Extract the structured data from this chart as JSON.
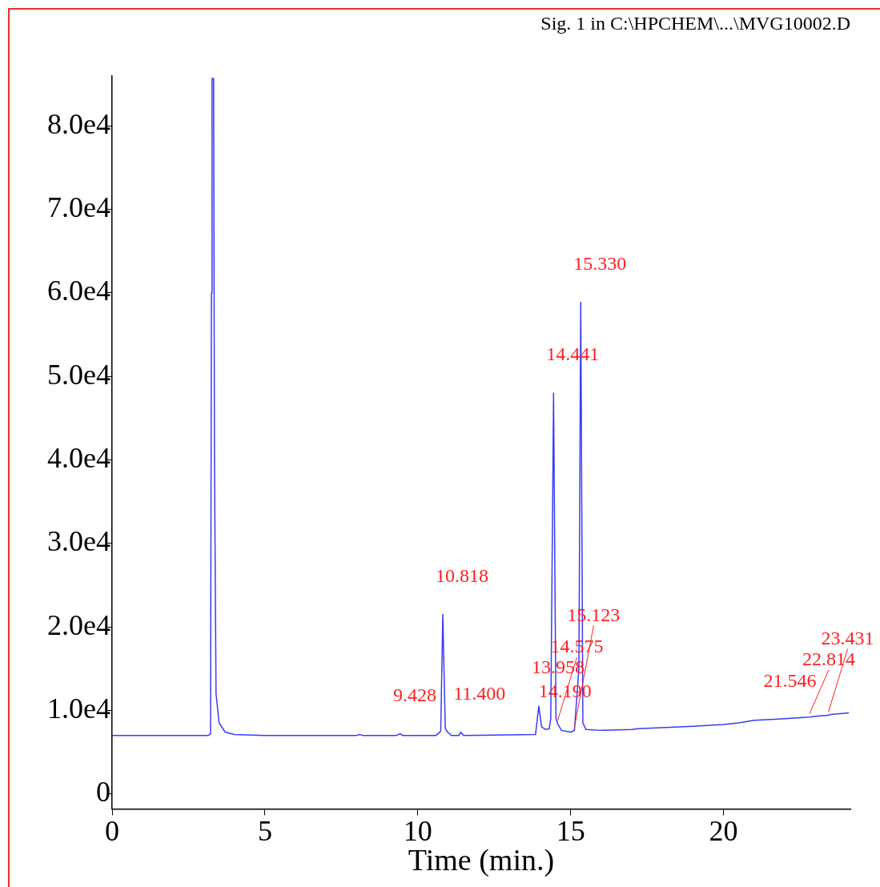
{
  "chart_data": {
    "type": "line",
    "title": "Sig. 1 in C:\\HPCHEM\\...\\MVG10002.D",
    "xlabel": "Time (min.)",
    "x": [
      0,
      3.15,
      3.22,
      3.25,
      3.27,
      3.32,
      3.35,
      3.4,
      3.5,
      3.7,
      4.0,
      5,
      8.0,
      8.1,
      8.2,
      9.3,
      9.428,
      9.5,
      10.6,
      10.75,
      10.818,
      10.9,
      11.0,
      11.1,
      11.35,
      11.4,
      11.5,
      13.85,
      13.958,
      14.05,
      14.19,
      14.3,
      14.35,
      14.441,
      14.52,
      14.575,
      14.7,
      15.0,
      15.123,
      15.27,
      15.33,
      15.4,
      15.5,
      16,
      17,
      17.2,
      17.8,
      19,
      20,
      20.5,
      21,
      21.546,
      22,
      22.814,
      23,
      23.431,
      23.5,
      24.1
    ],
    "series": [
      {
        "color": "#3a3af5",
        "values": [
          7000,
          7000,
          7200,
          60000,
          85700,
          85700,
          40000,
          12000,
          8500,
          7400,
          7100,
          7000,
          7000,
          7100,
          7000,
          7000,
          7200,
          7000,
          7000,
          7500,
          21500,
          7800,
          7300,
          7000,
          7000,
          7400,
          7000,
          7100,
          10500,
          8000,
          7700,
          7800,
          9000,
          48000,
          9000,
          8400,
          7600,
          7400,
          7600,
          15000,
          58900,
          8500,
          7700,
          7600,
          7700,
          7800,
          7900,
          8100,
          8300,
          8500,
          8800,
          8900,
          9000,
          9200,
          9300,
          9400,
          9500,
          9700
        ]
      }
    ],
    "xlim": [
      0,
      24.15
    ],
    "xticks": [
      0,
      5,
      10,
      15,
      20
    ],
    "ylim": [
      -1800,
      86000
    ],
    "yticks": [
      0,
      {
        "value": 10000,
        "label": "1.0e4"
      },
      {
        "value": 20000,
        "label": "2.0e4"
      },
      {
        "value": 30000,
        "label": "3.0e4"
      },
      {
        "value": 40000,
        "label": "4.0e4"
      },
      {
        "value": 50000,
        "label": "5.0e4"
      },
      {
        "value": 60000,
        "label": "6.0e4"
      },
      {
        "value": 70000,
        "label": "7.0e4"
      },
      {
        "value": 80000,
        "label": "8.0e4"
      }
    ],
    "grid": false,
    "legend": false,
    "marker": "none",
    "line_style": "solid",
    "annotations": [
      {
        "text": "9.428",
        "x": 9.428,
        "y": 7200
      },
      {
        "text": "10.818",
        "x": 10.818,
        "y": 21500
      },
      {
        "text": "11.400",
        "x": 11.4,
        "y": 7400
      },
      {
        "text": "13.958",
        "x": 13.958,
        "y": 10500
      },
      {
        "text": "14.190",
        "x": 14.19,
        "y": 7700
      },
      {
        "text": "14.575",
        "x": 14.575,
        "y": 8400
      },
      {
        "text": "15.123",
        "x": 15.123,
        "y": 7600
      },
      {
        "text": "14.441",
        "x": 14.441,
        "y": 48000
      },
      {
        "text": "15.330",
        "x": 15.33,
        "y": 58900
      },
      {
        "text": "21.546",
        "x": 21.546,
        "y": 8900
      },
      {
        "text": "22.814",
        "x": 22.814,
        "y": 9200
      },
      {
        "text": "23.431",
        "x": 23.431,
        "y": 9400
      }
    ]
  }
}
